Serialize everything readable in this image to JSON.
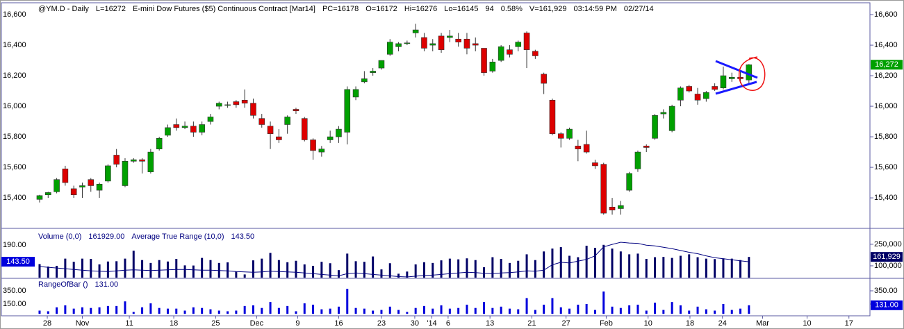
{
  "chart_data": [
    {
      "type": "candlestick",
      "header": [
        "@YM.D - Daily",
        "L=16272",
        "E-mini Dow Futures ($5) Continuous Contract [Mar14]",
        "PC=16178",
        "O=16172",
        "Hi=16276",
        "Lo=16145",
        "94",
        "0.58%",
        "V=161,929",
        "03:14:59 PM",
        "02/27/14"
      ],
      "open": [
        15390,
        15420,
        15440,
        15590,
        15460,
        15470,
        15520,
        15450,
        15510,
        15680,
        15480,
        15640,
        15650,
        15570,
        15720,
        15810,
        15880,
        15860,
        15870,
        15830,
        15900,
        16000,
        16010,
        16030,
        16040,
        16020,
        15920,
        15870,
        15800,
        15880,
        15980,
        15920,
        15780,
        15700,
        15780,
        15800,
        15830,
        16060,
        16160,
        16220,
        16250,
        16340,
        16390,
        16410,
        16480,
        16450,
        16400,
        16460,
        16450,
        16440,
        16440,
        16410,
        16380,
        16230,
        16300,
        16370,
        16390,
        16480,
        16360,
        16210,
        16040,
        15820,
        15790,
        15740,
        15750,
        15630,
        15620,
        15340,
        15330,
        15450,
        15590,
        15740,
        15790,
        15950,
        15840,
        16040,
        16130,
        16080,
        16050,
        16130,
        16120,
        16180,
        16190,
        16172
      ],
      "high": [
        15420,
        15440,
        15530,
        15610,
        15480,
        15500,
        15530,
        15500,
        15620,
        15720,
        15660,
        15660,
        15660,
        15720,
        15800,
        15880,
        15920,
        15900,
        15900,
        15900,
        15950,
        16030,
        16030,
        16040,
        16110,
        16050,
        15950,
        15900,
        15850,
        15940,
        15990,
        15930,
        15790,
        15740,
        15840,
        15870,
        16130,
        16130,
        16230,
        16250,
        16300,
        16440,
        16420,
        16430,
        16540,
        16480,
        16440,
        16480,
        16500,
        16480,
        16480,
        16450,
        16380,
        16310,
        16400,
        16400,
        16430,
        16490,
        16370,
        16220,
        16050,
        15830,
        15860,
        15780,
        15840,
        15650,
        15630,
        15400,
        15380,
        15570,
        15710,
        15750,
        15950,
        15980,
        16010,
        16130,
        16140,
        16120,
        16100,
        16150,
        16260,
        16220,
        16230,
        16276
      ],
      "low": [
        15370,
        15400,
        15430,
        15480,
        15400,
        15400,
        15440,
        15400,
        15500,
        15600,
        15470,
        15630,
        15560,
        15560,
        15710,
        15800,
        15840,
        15850,
        15800,
        15810,
        15880,
        15980,
        15990,
        15990,
        15990,
        15920,
        15860,
        15720,
        15760,
        15820,
        15950,
        15770,
        15650,
        15670,
        15760,
        15760,
        15750,
        16040,
        16150,
        16200,
        16240,
        16330,
        16360,
        16400,
        16450,
        16360,
        16360,
        16350,
        16420,
        16390,
        16340,
        16360,
        16200,
        16220,
        16290,
        16320,
        16360,
        16250,
        16310,
        16080,
        15810,
        15730,
        15780,
        15640,
        15690,
        15590,
        15290,
        15290,
        15290,
        15440,
        15570,
        15700,
        15780,
        15920,
        15830,
        16000,
        16090,
        16010,
        16030,
        16100,
        16110,
        16160,
        16150,
        16145
      ],
      "close": [
        15415,
        15435,
        15520,
        15500,
        15420,
        15480,
        15480,
        15490,
        15610,
        15620,
        15640,
        15650,
        15640,
        15700,
        15790,
        15860,
        15860,
        15870,
        15830,
        15880,
        15930,
        16020,
        16010,
        16010,
        16020,
        15940,
        15880,
        15820,
        15780,
        15930,
        15970,
        15780,
        15710,
        15720,
        15800,
        15850,
        16110,
        16110,
        16180,
        16230,
        16300,
        16420,
        16410,
        16415,
        16500,
        16380,
        16410,
        16370,
        16460,
        16420,
        16380,
        16400,
        16220,
        16290,
        16390,
        16340,
        16420,
        16370,
        16330,
        16150,
        15820,
        15790,
        15850,
        15720,
        15700,
        15610,
        15300,
        15320,
        15350,
        15560,
        15700,
        15730,
        15940,
        15960,
        16000,
        16120,
        16100,
        16040,
        16090,
        16110,
        16200,
        16190,
        16180,
        16272
      ],
      "up_color": "#00a000",
      "down_color": "#dd0000",
      "ylim": [
        15205,
        16673
      ],
      "yticks": [
        {
          "value": 15400,
          "label": "15,400"
        },
        {
          "value": 15600,
          "label": "15,600"
        },
        {
          "value": 15800,
          "label": "15,800"
        },
        {
          "value": 16000,
          "label": "16,000"
        },
        {
          "value": 16200,
          "label": "16,200"
        },
        {
          "value": 16400,
          "label": "16,400"
        },
        {
          "value": 16600,
          "label": "16,600"
        }
      ],
      "xlim": [
        -4.47,
        97.16
      ],
      "xticks": [
        {
          "value": 0.9,
          "label": "28"
        },
        {
          "value": 5,
          "label": "Nov"
        },
        {
          "value": 10.5,
          "label": "11"
        },
        {
          "value": 15.7,
          "label": "18"
        },
        {
          "value": 20.6,
          "label": "25"
        },
        {
          "value": 25.4,
          "label": "Dec"
        },
        {
          "value": 30.2,
          "label": "9"
        },
        {
          "value": 35,
          "label": "16"
        },
        {
          "value": 40,
          "label": "23"
        },
        {
          "value": 43.9,
          "label": "30"
        },
        {
          "value": 45.9,
          "label": "'14"
        },
        {
          "value": 47.8,
          "label": "6"
        },
        {
          "value": 52.7,
          "label": "13"
        },
        {
          "value": 57.6,
          "label": "21"
        },
        {
          "value": 61.6,
          "label": "27"
        },
        {
          "value": 66.3,
          "label": "Feb"
        },
        {
          "value": 71.2,
          "label": "10"
        },
        {
          "value": 76.1,
          "label": "18"
        },
        {
          "value": 79.9,
          "label": "24"
        },
        {
          "value": 84.6,
          "label": "Mar"
        },
        {
          "value": 89.8,
          "label": "10"
        },
        {
          "value": 94.7,
          "label": "17"
        }
      ],
      "last_label": "16,272"
    },
    {
      "type": "bar_line",
      "series": [
        {
          "name": "Volume (0,0)",
          "value_label": "161929.00",
          "color": "#000066",
          "axis": "y2",
          "values": [
            112000,
            95000,
            100000,
            150000,
            128000,
            150000,
            148000,
            110000,
            130000,
            132000,
            150000,
            205000,
            140000,
            120000,
            140000,
            130000,
            148000,
            103000,
            102000,
            155000,
            140000,
            120000,
            124000,
            60000,
            40000,
            138000,
            150000,
            190000,
            140000,
            125000,
            135000,
            110000,
            100000,
            128000,
            118000,
            70000,
            185000,
            132000,
            128000,
            165000,
            75000,
            118000,
            45000,
            60000,
            110000,
            125000,
            120000,
            138000,
            150000,
            145000,
            152000,
            140000,
            90000,
            160000,
            148000,
            120000,
            135000,
            180000,
            140000,
            200000,
            220000,
            230000,
            170000,
            160000,
            240000,
            225000,
            246000,
            220000,
            200000,
            180000,
            185000,
            148000,
            160000,
            162000,
            155000,
            170000,
            180000,
            160000,
            150000,
            147000,
            152000,
            150000,
            140000,
            161929
          ]
        },
        {
          "name": "Average True Range (10,0)",
          "value_label": "143.50",
          "color": "#000080",
          "values": [
            130,
            128,
            126,
            124,
            122,
            120,
            118,
            117,
            116,
            118,
            120,
            121,
            120,
            119,
            120,
            121,
            122,
            122,
            121,
            120,
            120,
            119,
            118,
            116,
            115,
            114,
            115,
            117,
            116,
            115,
            114,
            112,
            110,
            108,
            106,
            104,
            110,
            112,
            110,
            108,
            106,
            104,
            102,
            101,
            103,
            105,
            106,
            108,
            110,
            112,
            114,
            113,
            111,
            110,
            112,
            113,
            115,
            118,
            117,
            120,
            135,
            142,
            140,
            145,
            150,
            160,
            185,
            192,
            198,
            196,
            195,
            190,
            188,
            184,
            180,
            175,
            170,
            166,
            160,
            155,
            152,
            149,
            146,
            143.5
          ]
        }
      ],
      "ylim": [
        99,
        235
      ],
      "yticks": [
        {
          "value": 190,
          "label": "190.00"
        }
      ],
      "y2lim": [
        17700,
        356000
      ],
      "y2ticks": [
        {
          "value": 250000,
          "label": "250,000"
        },
        {
          "value": 100000,
          "label": "100,000"
        }
      ],
      "last_label_y": "143.50",
      "last_label_y2": "161,929"
    },
    {
      "type": "bar",
      "series": [
        {
          "name": "RangeOfBar ()",
          "value_label": "131.00",
          "color": "#0000dd",
          "values": [
            50,
            40,
            100,
            130,
            80,
            100,
            90,
            100,
            120,
            120,
            190,
            30,
            100,
            160,
            90,
            80,
            80,
            50,
            100,
            90,
            70,
            50,
            40,
            50,
            120,
            130,
            90,
            180,
            90,
            120,
            40,
            160,
            140,
            70,
            80,
            110,
            380,
            90,
            80,
            50,
            60,
            110,
            60,
            30,
            90,
            120,
            80,
            130,
            80,
            90,
            140,
            90,
            180,
            90,
            110,
            80,
            70,
            240,
            60,
            140,
            240,
            100,
            80,
            140,
            150,
            60,
            340,
            110,
            90,
            130,
            140,
            50,
            170,
            60,
            180,
            130,
            50,
            110,
            70,
            50,
            150,
            60,
            80,
            131
          ]
        }
      ],
      "ylim": [
        -29,
        529
      ],
      "yticks": [
        {
          "value": 150,
          "label": "150.00"
        },
        {
          "value": 350,
          "label": "350.00"
        }
      ],
      "last_label": "131.00"
    }
  ]
}
